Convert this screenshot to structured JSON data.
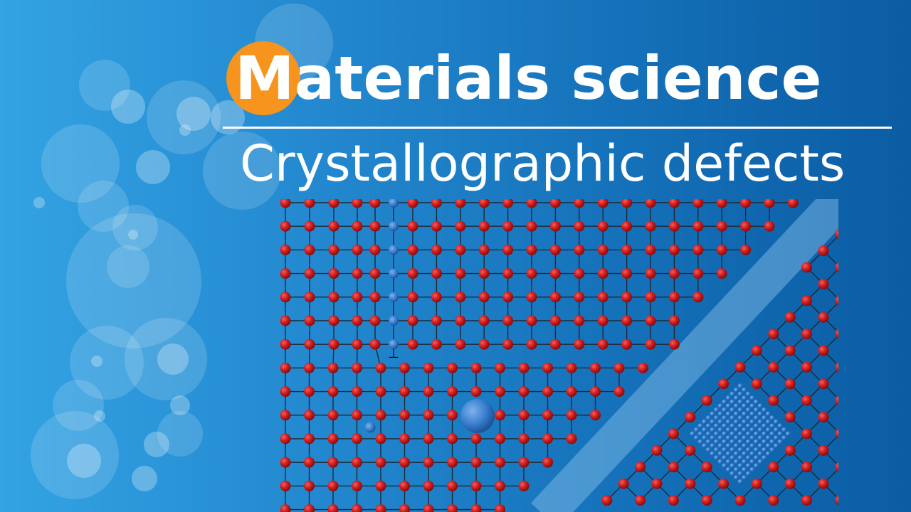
{
  "header": {
    "title_first_letter": "M",
    "title_rest": "aterials science",
    "subtitle": "Crystallographic defects"
  },
  "colors": {
    "background_left": "#33a3e3",
    "background_right": "#0b5ca3",
    "badge": "#f7941d",
    "atom": "#d42020",
    "defect_atom": "#3a7fd0",
    "bond": "#1a2a3a",
    "grain_boundary_band": "#8cc4ec"
  },
  "illustration": {
    "dislocation_symbol": "⊥"
  }
}
